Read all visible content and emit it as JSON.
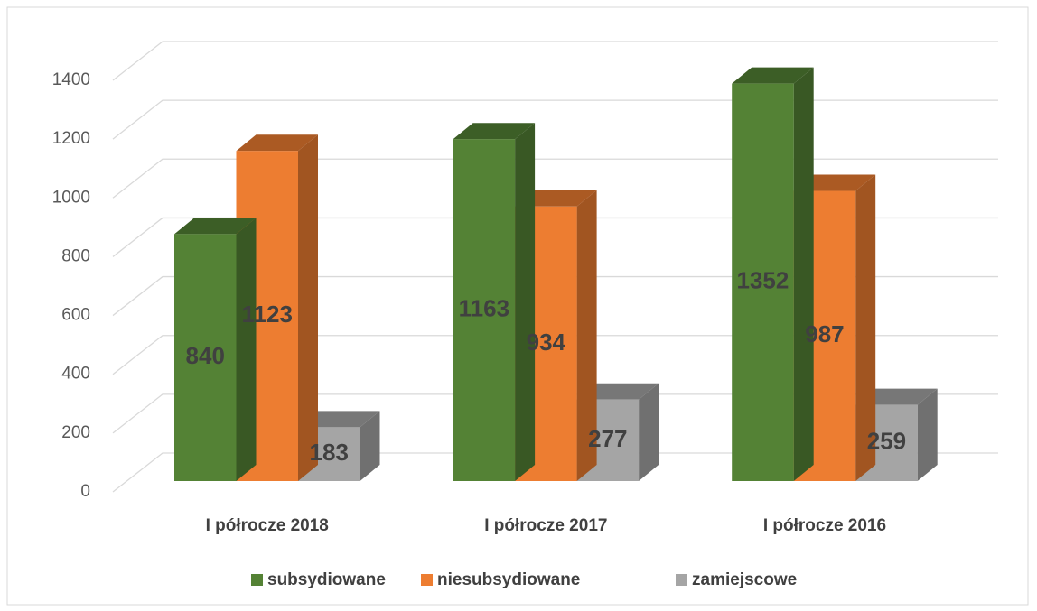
{
  "chart_data": {
    "type": "bar3d",
    "categories": [
      "I półrocze 2018",
      "I półrocze 2017",
      "I półrocze 2016"
    ],
    "series": [
      {
        "name": "subsydiowane",
        "color": "#548235",
        "values": [
          840,
          1163,
          1352
        ]
      },
      {
        "name": "niesubsydiowane",
        "color": "#ed7d31",
        "values": [
          1123,
          934,
          987
        ]
      },
      {
        "name": "zamiejscowe",
        "color": "#a5a5a5",
        "values": [
          183,
          277,
          259
        ]
      }
    ],
    "ylim": [
      0,
      1400
    ],
    "yticks": [
      0,
      200,
      400,
      600,
      800,
      1000,
      1200,
      1400
    ],
    "grid": true,
    "legend": "bottom"
  }
}
